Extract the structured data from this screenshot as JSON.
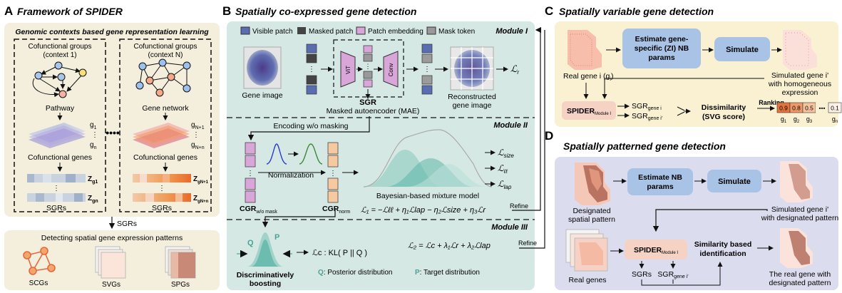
{
  "panelA": {
    "letter": "A",
    "title": "Framework of SPIDER",
    "subtitle": "Genomic contexts based gene representation learning",
    "group1_title_l1": "Cofunctional groups",
    "group1_title_l2": "(context 1)",
    "groupN_title_l1": "Cofunctional groups",
    "groupN_title_l2": "(context N)",
    "pathway": "Pathway",
    "gene_network": "Gene network",
    "g1": "g",
    "g1_sub": "1",
    "gn": "g",
    "gn_sub": "n",
    "gN1": "g",
    "gN1_sub": "N+1",
    "gNn": "g",
    "gNn_sub": "N+n",
    "cofunctional_genes": "Cofunctional genes",
    "z_g1": "Z",
    "z_g1_sub": "g1",
    "z_gn": "Z",
    "z_gn_sub": "gn",
    "z_gN1": "Z",
    "z_gN1_sub": "gN+1",
    "z_gNn": "Z",
    "z_gNn_sub": "gN+n",
    "sgrs": "SGRs",
    "arrow_label": "SGRs",
    "bottom_title": "Detecting spatial gene expression patterns",
    "scgs": "SCGs",
    "svgs": "SVGs",
    "spgs": "SPGs"
  },
  "panelB": {
    "letter": "B",
    "title": "Spatially co-expressed gene detection",
    "legend": [
      "Visible patch",
      "Masked patch",
      "Patch embedding",
      "Mask token"
    ],
    "module1": "Module I",
    "module2": "Module II",
    "module3": "Module III",
    "gene_image": "Gene image",
    "vit": "ViT",
    "conv": "Conv",
    "sgr": "SGR",
    "mae": "Masked autoencoder (MAE)",
    "recon_l1": "Reconstructed",
    "recon_l2": "gene image",
    "loss_r": "ℒ",
    "loss_r_sub": "r",
    "encoding": "Encoding w/o masking",
    "normalization": "Normalization",
    "cgr_wo": "CGR",
    "cgr_wo_sub": "w/o mask",
    "cgr_norm": "CGR",
    "cgr_norm_sub": "norm",
    "bmm": "Bayesian-based mixture model",
    "loss_size": "size",
    "loss_ll": "ℓℓ",
    "loss_lap": "lap",
    "eq1": "ℒ₁ = −ℒℓℓ + η₁ℒlap − η₂ℒsize + η₃ℒr",
    "eq2": "ℒ₂ = ℒc + λ₁ℒr + λ₂ℒlap",
    "refine1": "Refine",
    "refine2": "Refine",
    "q": "Q",
    "p": "P",
    "disc_l1": "Discriminatively",
    "disc_l2": "boosting",
    "lc": "ℒc : KL( P || Q )",
    "q_desc_key": "Q",
    "q_desc": ": Posterior distribution",
    "p_desc_key": "P",
    "p_desc": ": Target distribution"
  },
  "panelC": {
    "letter": "C",
    "title": "Spatially variable gene detection",
    "estimate": "Estimate gene-specific (ZI) NB params",
    "estimate_l1": "Estimate gene-",
    "estimate_l2": "specific (ZI) NB",
    "estimate_l3": "params",
    "simulate": "Simulate",
    "real_gene": "Real gene i (g",
    "real_gene_sub": "i",
    "sim_gene_l1": "Simulated gene i'",
    "sim_gene_l2": "with homogeneous",
    "sim_gene_l3": "expression",
    "spider": "SPIDER",
    "spider_sub": "Module I",
    "sgr_i": "SGR",
    "sgr_i_sub": "gene i",
    "sgr_ip": "SGR",
    "sgr_ip_sub": "gene i'",
    "dissim_l1": "Dissimilarity",
    "dissim_l2": "(SVG score)",
    "ranking": "Ranking",
    "scores": [
      "0.9",
      "0.8",
      "0.5",
      "•••",
      "0.1"
    ],
    "score_labels": [
      "g1",
      "g2",
      "g3",
      "",
      "gn"
    ]
  },
  "panelD": {
    "letter": "D",
    "title": "Spatially patterned gene detection",
    "designated_l1": "Designated",
    "designated_l2": "spatial pattern",
    "estimate_l1": "Estimate NB",
    "estimate_l2": "params",
    "simulate": "Simulate",
    "sim_l1": "Simulated gene i'",
    "sim_l2": "with designated pattern",
    "spider": "SPIDER",
    "spider_sub": "Module I",
    "sim_id_l1": "Similarity based",
    "sim_id_l2": "identification",
    "real_genes": "Real genes",
    "sgrs": "SGRs",
    "sgr_gene": "SGR",
    "sgr_gene_sub": "gene i'",
    "result_l1": "The real gene with",
    "result_l2": "designated pattern"
  },
  "colors": {
    "panelA_bg": "#f3efdc",
    "panelB_bg": "#d5e8e3",
    "panelC_bg": "#f9f1d2",
    "panelD_bg": "#dcdcef",
    "box_blue": "#a9c3e6",
    "patch_purple": "#d9a6d9",
    "cgr_orange": "#f7c9a0",
    "teal": "#5fb6a8"
  }
}
